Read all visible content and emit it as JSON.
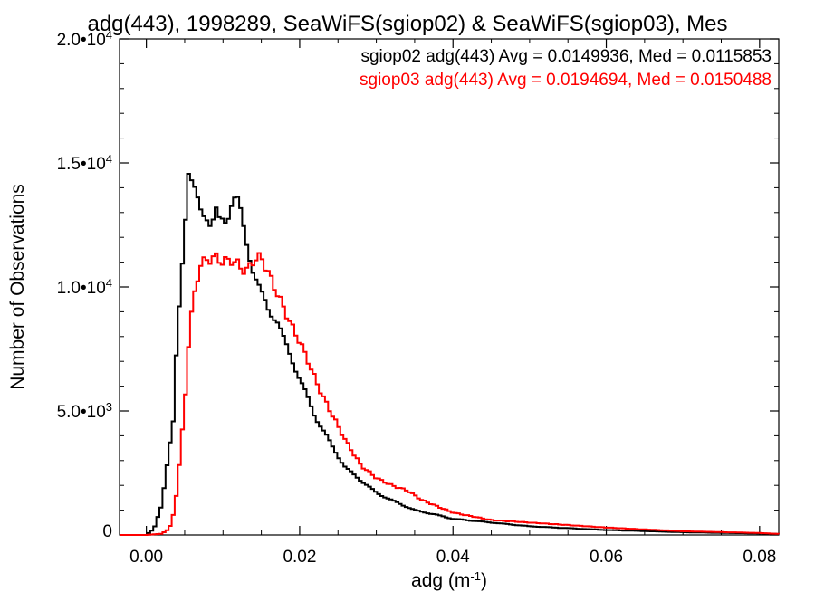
{
  "chart_data": {
    "type": "histogram-line",
    "title": "adg(443), 1998289, SeaWiFS(sgiop02) & SeaWiFS(sgiop03), Mes",
    "xlabel_base": "adg (m",
    "xlabel_exp": "-1",
    "xlabel_close": ")",
    "ylabel": "Number of Observations",
    "xlim": [
      -0.0035,
      0.0825
    ],
    "ylim": [
      0,
      20000
    ],
    "x_ticks": [
      {
        "value": 0.0,
        "label": "0.00"
      },
      {
        "value": 0.02,
        "label": "0.02"
      },
      {
        "value": 0.04,
        "label": "0.04"
      },
      {
        "value": 0.06,
        "label": "0.06"
      },
      {
        "value": 0.08,
        "label": "0.08"
      }
    ],
    "y_ticks": [
      {
        "value": 0,
        "mant": "0",
        "exp": ""
      },
      {
        "value": 5000,
        "mant": "5.0•10",
        "exp": "3"
      },
      {
        "value": 10000,
        "mant": "1.0•10",
        "exp": "4"
      },
      {
        "value": 15000,
        "mant": "1.5•10",
        "exp": "4"
      },
      {
        "value": 20000,
        "mant": "2.0•10",
        "exp": "4"
      }
    ],
    "legend_position": "top-right",
    "series": [
      {
        "name": "sgiop02",
        "legend_text": "sgiop02 adg(443) Avg = 0.0149936, Med = 0.0115853",
        "color": "#000000",
        "x": [
          -0.0035,
          0.0,
          0.001,
          0.002,
          0.003,
          0.0035,
          0.004,
          0.005,
          0.0055,
          0.006,
          0.007,
          0.008,
          0.0085,
          0.009,
          0.0095,
          0.01,
          0.0105,
          0.011,
          0.0115,
          0.012,
          0.013,
          0.014,
          0.015,
          0.016,
          0.017,
          0.018,
          0.019,
          0.02,
          0.022,
          0.024,
          0.026,
          0.028,
          0.03,
          0.032,
          0.035,
          0.038,
          0.04,
          0.045,
          0.05,
          0.06,
          0.07,
          0.08,
          0.0825
        ],
        "y": [
          0,
          0,
          250,
          1200,
          3500,
          4500,
          7800,
          12500,
          14700,
          14100,
          13100,
          12900,
          12400,
          13100,
          12600,
          12700,
          12700,
          13400,
          13600,
          13400,
          11900,
          10600,
          9700,
          9050,
          8700,
          7800,
          7100,
          6300,
          4800,
          3700,
          2700,
          2200,
          1700,
          1400,
          1000,
          800,
          650,
          500,
          350,
          200,
          110,
          60,
          40
        ]
      },
      {
        "name": "sgiop03",
        "legend_text": "sgiop03 adg(443) Avg = 0.0194694, Med = 0.0150488",
        "color": "#ff0000",
        "x": [
          -0.0035,
          0.0,
          0.002,
          0.003,
          0.0035,
          0.004,
          0.005,
          0.0055,
          0.006,
          0.007,
          0.008,
          0.009,
          0.01,
          0.011,
          0.012,
          0.013,
          0.014,
          0.015,
          0.016,
          0.017,
          0.018,
          0.019,
          0.02,
          0.021,
          0.022,
          0.023,
          0.024,
          0.025,
          0.026,
          0.028,
          0.03,
          0.032,
          0.034,
          0.036,
          0.04,
          0.045,
          0.05,
          0.06,
          0.07,
          0.08,
          0.0825
        ],
        "y": [
          0,
          0,
          50,
          250,
          800,
          1800,
          5200,
          7700,
          9200,
          10900,
          11100,
          11200,
          11000,
          11100,
          10900,
          10600,
          11100,
          11200,
          10500,
          9800,
          9100,
          8400,
          7800,
          7100,
          6300,
          5600,
          5000,
          4400,
          3800,
          2800,
          2300,
          2000,
          1800,
          1400,
          900,
          600,
          500,
          300,
          150,
          80,
          40
        ]
      }
    ]
  }
}
